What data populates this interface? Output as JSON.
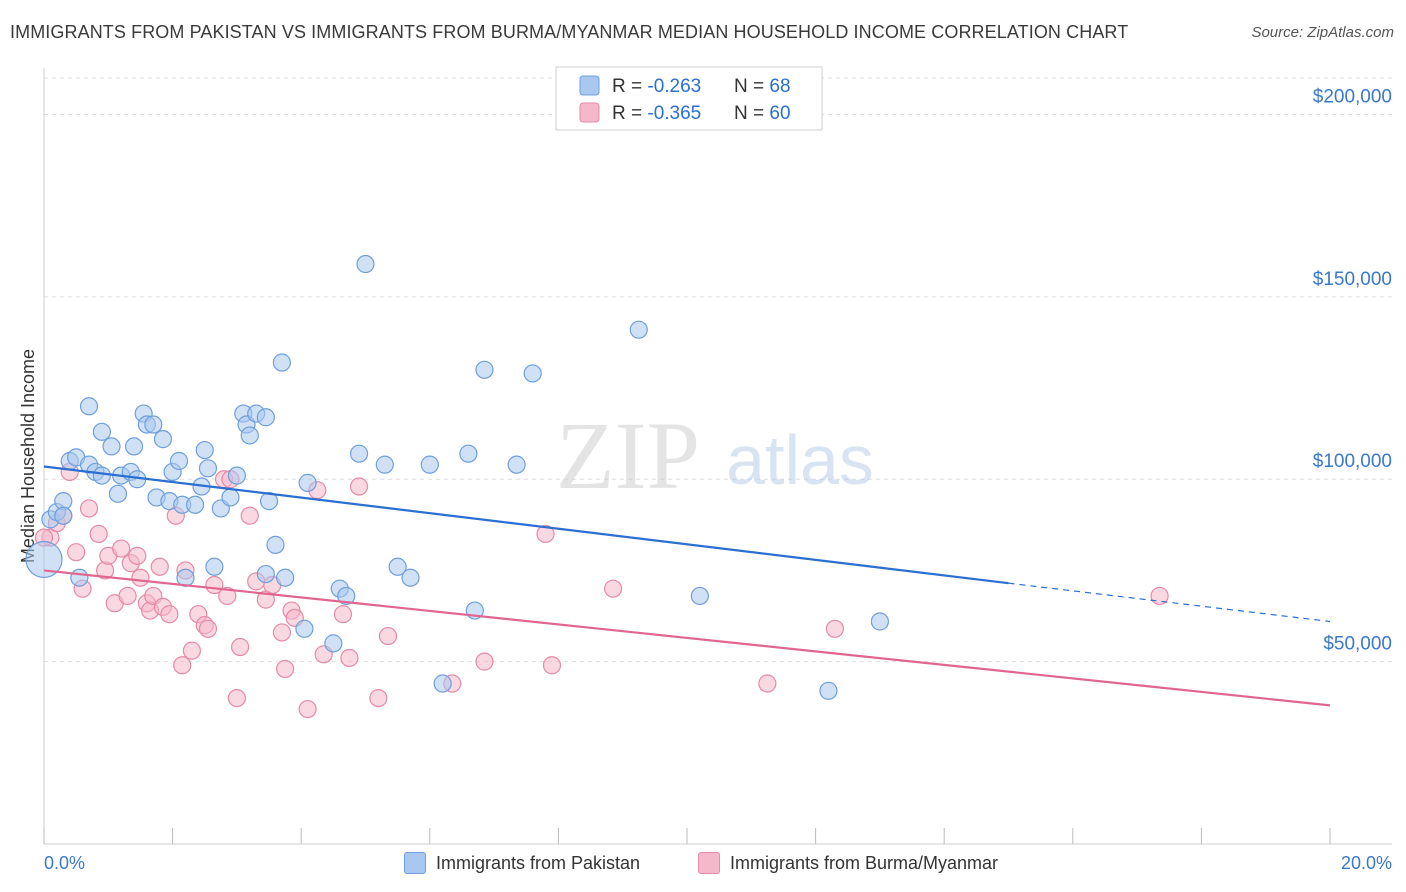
{
  "header": {
    "title": "IMMIGRANTS FROM PAKISTAN VS IMMIGRANTS FROM BURMA/MYANMAR MEDIAN HOUSEHOLD INCOME CORRELATION CHART",
    "source": "Source: ZipAtlas.com"
  },
  "watermark": {
    "zip": "ZIP",
    "atlas": "atlas"
  },
  "legend_top": {
    "rows": [
      {
        "r_label": "R = ",
        "r_value": "-0.263",
        "n_label": "N = ",
        "n_value": "68"
      },
      {
        "r_label": "R = ",
        "r_value": "-0.365",
        "n_label": "N = ",
        "n_value": "60"
      }
    ]
  },
  "colors": {
    "pakistan_fill": "#a9c8ef",
    "pakistan_stroke": "#6f9fdc",
    "pakistan_line": "#2a6fd1",
    "burma_fill": "#f5b8cb",
    "burma_stroke": "#e58aa8",
    "burma_line": "#e06690",
    "axis_text": "#3a78c9",
    "grid": "#dddddd"
  },
  "chart_data": {
    "type": "scatter",
    "title": "IMMIGRANTS FROM PAKISTAN VS IMMIGRANTS FROM BURMA/MYANMAR MEDIAN HOUSEHOLD INCOME CORRELATION CHART",
    "xlabel": "",
    "ylabel": "Median Household Income",
    "xlim": [
      0,
      20
    ],
    "ylim": [
      0,
      210000
    ],
    "x_tick_labels": [
      "0.0%",
      "20.0%"
    ],
    "y_ticks": [
      50000,
      100000,
      150000,
      200000
    ],
    "y_tick_labels": [
      "$50,000",
      "$100,000",
      "$150,000",
      "$200,000"
    ],
    "grid": true,
    "legend_position": "top-center",
    "series": [
      {
        "name": "Immigrants from Pakistan",
        "r": -0.263,
        "n": 68,
        "trend": {
          "x": [
            0,
            15
          ],
          "y": [
            103500,
            71500
          ],
          "dashed_to": [
            20,
            61000
          ]
        },
        "points": [
          [
            0.0,
            78000
          ],
          [
            0.1,
            89000
          ],
          [
            0.2,
            91000
          ],
          [
            0.3,
            94000
          ],
          [
            0.3,
            90000
          ],
          [
            0.4,
            105000
          ],
          [
            0.5,
            106000
          ],
          [
            0.7,
            104000
          ],
          [
            0.7,
            120000
          ],
          [
            0.8,
            102000
          ],
          [
            0.9,
            113000
          ],
          [
            0.9,
            101000
          ],
          [
            1.05,
            109000
          ],
          [
            1.15,
            96000
          ],
          [
            1.2,
            101000
          ],
          [
            1.35,
            102000
          ],
          [
            1.4,
            109000
          ],
          [
            1.45,
            100000
          ],
          [
            1.55,
            118000
          ],
          [
            1.6,
            115000
          ],
          [
            1.7,
            115000
          ],
          [
            1.75,
            95000
          ],
          [
            1.85,
            111000
          ],
          [
            1.95,
            94000
          ],
          [
            2.0,
            102000
          ],
          [
            2.1,
            105000
          ],
          [
            2.15,
            93000
          ],
          [
            2.2,
            73000
          ],
          [
            2.35,
            93000
          ],
          [
            2.45,
            98000
          ],
          [
            2.5,
            108000
          ],
          [
            2.55,
            103000
          ],
          [
            2.65,
            76000
          ],
          [
            2.75,
            92000
          ],
          [
            2.9,
            95000
          ],
          [
            3.0,
            101000
          ],
          [
            3.1,
            118000
          ],
          [
            3.15,
            115000
          ],
          [
            3.2,
            112000
          ],
          [
            3.3,
            118000
          ],
          [
            3.45,
            117000
          ],
          [
            3.5,
            94000
          ],
          [
            3.6,
            82000
          ],
          [
            3.7,
            132000
          ],
          [
            3.75,
            73000
          ],
          [
            3.45,
            74000
          ],
          [
            4.1,
            99000
          ],
          [
            4.05,
            59000
          ],
          [
            4.5,
            55000
          ],
          [
            4.6,
            70000
          ],
          [
            4.7,
            68000
          ],
          [
            4.9,
            107000
          ],
          [
            5.0,
            159000
          ],
          [
            5.3,
            104000
          ],
          [
            5.5,
            76000
          ],
          [
            5.7,
            73000
          ],
          [
            6.2,
            44000
          ],
          [
            6.6,
            107000
          ],
          [
            6.7,
            64000
          ],
          [
            6.85,
            130000
          ],
          [
            7.35,
            104000
          ],
          [
            7.6,
            129000
          ],
          [
            9.25,
            141000
          ],
          [
            10.2,
            68000
          ],
          [
            12.2,
            42000
          ],
          [
            13.0,
            61000
          ],
          [
            0.55,
            73000
          ],
          [
            6.0,
            104000
          ]
        ]
      },
      {
        "name": "Immigrants from Burma/Myanmar",
        "r": -0.365,
        "n": 60,
        "trend": {
          "x": [
            0,
            20
          ],
          "y": [
            75000,
            38000
          ]
        },
        "points": [
          [
            0.1,
            84000
          ],
          [
            0.2,
            88000
          ],
          [
            0.3,
            90000
          ],
          [
            0.4,
            102000
          ],
          [
            0.6,
            70000
          ],
          [
            0.7,
            92000
          ],
          [
            0.85,
            85000
          ],
          [
            0.95,
            75000
          ],
          [
            1.0,
            79000
          ],
          [
            1.1,
            66000
          ],
          [
            1.2,
            81000
          ],
          [
            1.3,
            68000
          ],
          [
            1.35,
            77000
          ],
          [
            1.45,
            79000
          ],
          [
            1.5,
            73000
          ],
          [
            1.6,
            66000
          ],
          [
            1.65,
            64000
          ],
          [
            1.7,
            68000
          ],
          [
            1.8,
            76000
          ],
          [
            1.85,
            65000
          ],
          [
            1.95,
            63000
          ],
          [
            2.05,
            90000
          ],
          [
            2.15,
            49000
          ],
          [
            2.2,
            75000
          ],
          [
            2.3,
            53000
          ],
          [
            2.4,
            63000
          ],
          [
            2.5,
            60000
          ],
          [
            2.55,
            59000
          ],
          [
            2.65,
            71000
          ],
          [
            2.8,
            100000
          ],
          [
            2.85,
            68000
          ],
          [
            3.0,
            40000
          ],
          [
            3.05,
            54000
          ],
          [
            3.2,
            90000
          ],
          [
            3.3,
            72000
          ],
          [
            3.45,
            67000
          ],
          [
            3.55,
            71000
          ],
          [
            3.7,
            58000
          ],
          [
            3.75,
            48000
          ],
          [
            3.85,
            64000
          ],
          [
            3.9,
            62000
          ],
          [
            4.1,
            37000
          ],
          [
            4.25,
            97000
          ],
          [
            4.35,
            52000
          ],
          [
            4.65,
            63000
          ],
          [
            4.75,
            51000
          ],
          [
            4.9,
            98000
          ],
          [
            5.2,
            40000
          ],
          [
            5.35,
            57000
          ],
          [
            6.35,
            44000
          ],
          [
            6.85,
            50000
          ],
          [
            7.8,
            85000
          ],
          [
            7.9,
            49000
          ],
          [
            8.85,
            70000
          ],
          [
            11.25,
            44000
          ],
          [
            12.3,
            59000
          ],
          [
            17.35,
            68000
          ],
          [
            0.0,
            84000
          ],
          [
            0.5,
            80000
          ],
          [
            2.9,
            100000
          ]
        ]
      }
    ]
  },
  "legend_bottom": {
    "items": [
      {
        "label": "Immigrants from Pakistan"
      },
      {
        "label": "Immigrants from Burma/Myanmar"
      }
    ]
  }
}
